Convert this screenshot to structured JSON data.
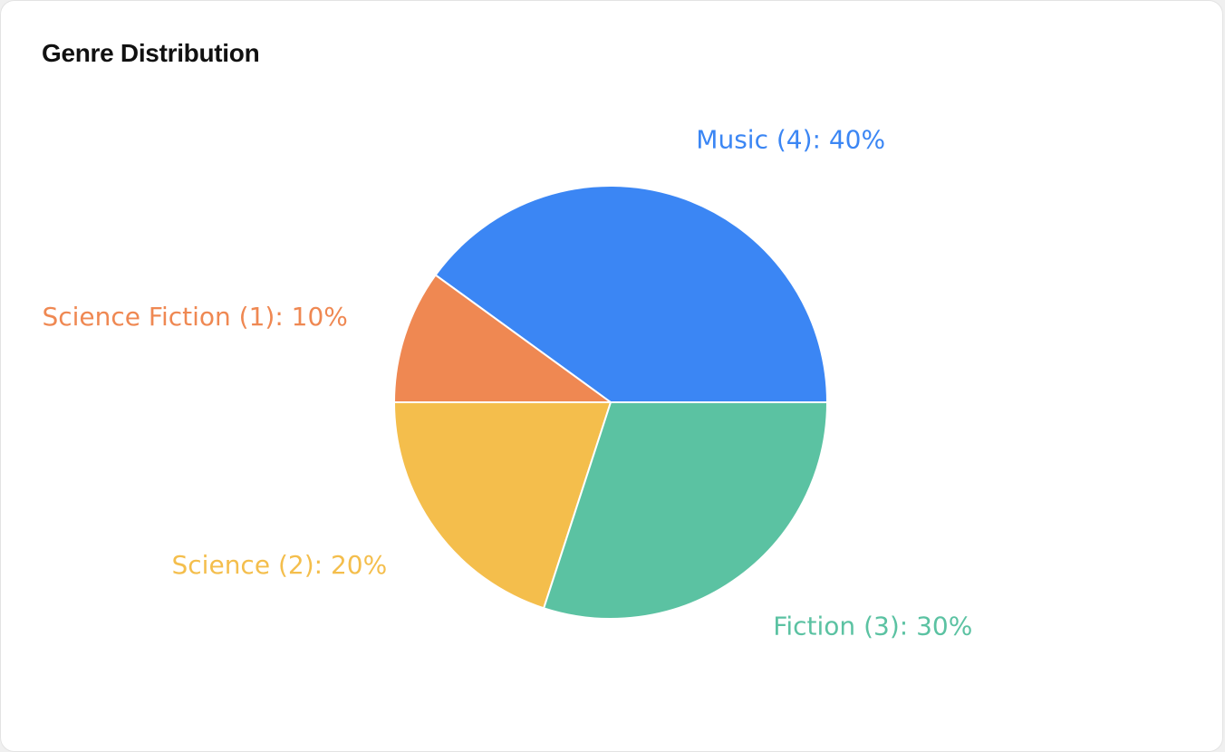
{
  "card": {
    "title": "Genre Distribution"
  },
  "chart_data": {
    "type": "pie",
    "title": "Genre Distribution",
    "start_angle_deg": 0,
    "direction": "clockwise",
    "slices": [
      {
        "name": "Music",
        "count": 4,
        "percent": 40,
        "label": "Music (4): 40%",
        "color": "#3b86f4"
      },
      {
        "name": "Science Fiction",
        "count": 1,
        "percent": 10,
        "label": "Science Fiction (1): 10%",
        "color": "#ef8852"
      },
      {
        "name": "Science",
        "count": 2,
        "percent": 20,
        "label": "Science (2): 20%",
        "color": "#f4be4c"
      },
      {
        "name": "Fiction",
        "count": 3,
        "percent": 30,
        "label": "Fiction (3): 30%",
        "color": "#5bc2a2"
      }
    ]
  }
}
